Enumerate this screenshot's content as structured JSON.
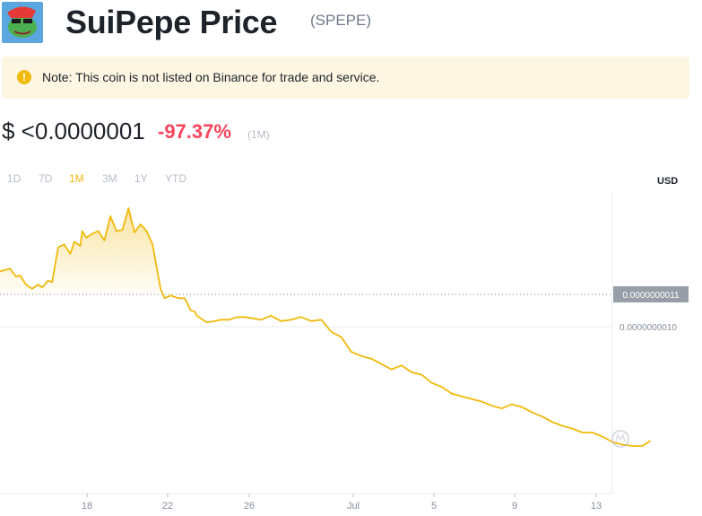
{
  "header": {
    "title": "SuiPepe Price",
    "symbol": "(SPEPE)"
  },
  "notice": {
    "icon": "exclamation-icon",
    "text": "Note: This coin is not listed on Binance for trade and service."
  },
  "price": {
    "value": "$ <0.0000001",
    "change": "-97.37%",
    "period": "(1M)"
  },
  "ranges": [
    "1D",
    "7D",
    "1M",
    "3M",
    "1Y",
    "YTD"
  ],
  "active_range": "1M",
  "currency": "USD",
  "colors": {
    "line": "#f0b90b",
    "negative": "#f6465d",
    "muted": "#b7bdc6",
    "notice_bg": "#fdf6e3"
  },
  "chart_data": {
    "type": "area",
    "x_ticks": [
      "18",
      "22",
      "26",
      "Jul",
      "5",
      "9",
      "13"
    ],
    "reference_label": "0.0000000011",
    "gridline_label": "0.0000000010",
    "watermark_icon": "coinmarketcap-icon",
    "series": [
      {
        "x": [
          0,
          0.5,
          0.8,
          1.0,
          1.3,
          1.6,
          1.9,
          2.1,
          2.4,
          2.6,
          2.9,
          3.2,
          3.5,
          3.7,
          4.0,
          4.1,
          4.3,
          4.6,
          4.9,
          5.2,
          5.5,
          5.8,
          6.1,
          6.4,
          6.7,
          7.0,
          7.3,
          7.6,
          7.8,
          8.0,
          8.2,
          8.5,
          8.9,
          9.2,
          9.5,
          9.7,
          9.8,
          10.0,
          10.3,
          10.7,
          11.0,
          11.4,
          11.8,
          12.2,
          12.6,
          13.0,
          13.5,
          14.0,
          14.5,
          15.0,
          15.5,
          16.0,
          16.5,
          17.0,
          17.5,
          18.0,
          18.5,
          19.0,
          19.5,
          20.0,
          20.5,
          21.0,
          21.5,
          22.0,
          22.5,
          23.0,
          23.5,
          24.0,
          24.5,
          25.0,
          25.5,
          26.0,
          26.5,
          27.0,
          27.5,
          28.0,
          28.5,
          29.0,
          29.5,
          30.0,
          30.5,
          31.0,
          31.5,
          32.0,
          32.4
        ],
        "values": [
          1.011,
          1.013,
          1.007,
          1.008,
          1.001,
          0.998,
          1.001,
          0.999,
          1.004,
          1.003,
          1.029,
          1.031,
          1.024,
          1.033,
          1.03,
          1.041,
          1.036,
          1.039,
          1.041,
          1.034,
          1.052,
          1.041,
          1.042,
          1.058,
          1.04,
          1.046,
          1.041,
          1.031,
          1.014,
          0.998,
          0.991,
          0.993,
          0.991,
          0.991,
          0.982,
          0.981,
          0.978,
          0.976,
          0.973,
          0.974,
          0.975,
          0.975,
          0.977,
          0.977,
          0.976,
          0.975,
          0.978,
          0.974,
          0.975,
          0.977,
          0.974,
          0.975,
          0.966,
          0.962,
          0.951,
          0.948,
          0.946,
          0.942,
          0.938,
          0.941,
          0.936,
          0.934,
          0.928,
          0.925,
          0.92,
          0.918,
          0.916,
          0.914,
          0.911,
          0.909,
          0.912,
          0.91,
          0.906,
          0.903,
          0.899,
          0.896,
          0.894,
          0.891,
          0.891,
          0.888,
          0.884,
          0.882,
          0.881,
          0.881,
          0.885
        ]
      }
    ]
  }
}
